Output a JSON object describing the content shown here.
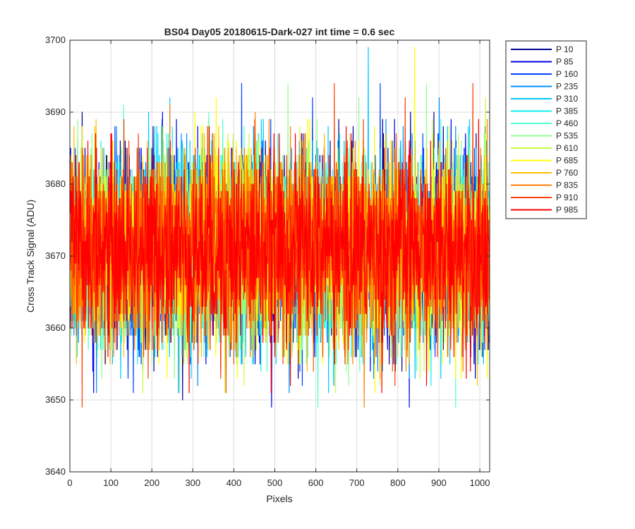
{
  "chart_data": {
    "type": "line",
    "title": "BS04 Day05 20180615-Dark-027 int time = 0.6 sec",
    "xlabel": "Pixels",
    "ylabel": "Cross Track Signal (ADU)",
    "xlim": [
      0,
      1024
    ],
    "ylim": [
      3640,
      3700
    ],
    "xticks": [
      0,
      100,
      200,
      300,
      400,
      500,
      600,
      700,
      800,
      900,
      1000
    ],
    "yticks": [
      3640,
      3650,
      3660,
      3670,
      3680,
      3690,
      3700
    ],
    "grid": true,
    "legend_position": "outside-top-right",
    "n_points": 1024,
    "noise": {
      "mean": 3671,
      "sigma": 6.5,
      "min": 3641,
      "max": 3699
    },
    "series": [
      {
        "name": "P 10",
        "color": "#00008f"
      },
      {
        "name": "P 85",
        "color": "#0000ec"
      },
      {
        "name": "P 160",
        "color": "#0040ff"
      },
      {
        "name": "P 235",
        "color": "#0090ff"
      },
      {
        "name": "P 310",
        "color": "#00c8ff"
      },
      {
        "name": "P 385",
        "color": "#10f0f0"
      },
      {
        "name": "P 460",
        "color": "#50ffd0"
      },
      {
        "name": "P 535",
        "color": "#90ff90"
      },
      {
        "name": "P 610",
        "color": "#c8ff40"
      },
      {
        "name": "P 685",
        "color": "#ffff00"
      },
      {
        "name": "P 760",
        "color": "#ffc000"
      },
      {
        "name": "P 835",
        "color": "#ff8000"
      },
      {
        "name": "P 910",
        "color": "#ff4000"
      },
      {
        "name": "P 985",
        "color": "#ff0000"
      }
    ]
  }
}
